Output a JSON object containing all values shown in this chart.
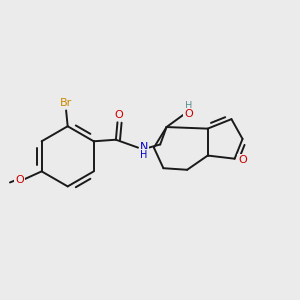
{
  "background_color": "#ebebeb",
  "bond_color": "#1a1a1a",
  "atom_colors": {
    "Br": "#cc8800",
    "O": "#cc0000",
    "N": "#0000cc",
    "H": "#5a9090",
    "C": "#1a1a1a"
  },
  "figsize": [
    3.0,
    3.0
  ],
  "dpi": 100
}
